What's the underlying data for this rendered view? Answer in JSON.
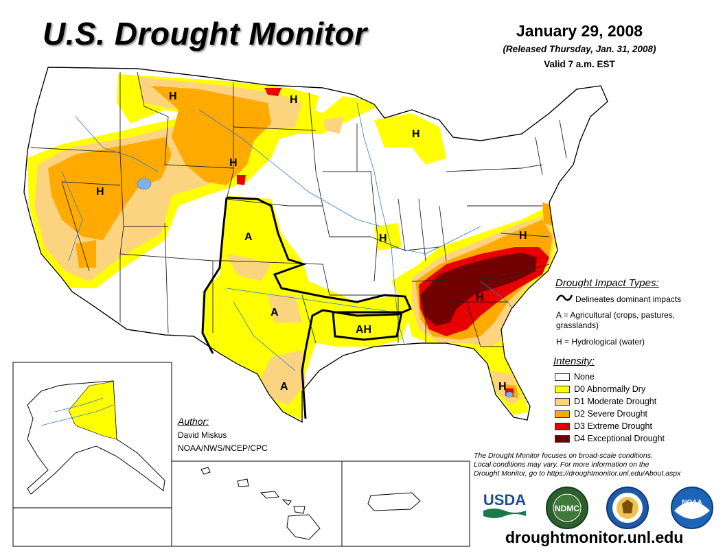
{
  "header": {
    "title": "U.S. Drought Monitor",
    "date": "January 29, 2008",
    "released": "(Released Thursday, Jan. 31, 2008)",
    "valid": "Valid 7 a.m. EST"
  },
  "impact_types": {
    "heading": "Drought Impact Types:",
    "line_label": "Delineates dominant impacts",
    "a_label_1": "A = Agricultural (crops, pastures,",
    "a_label_2": "grasslands)",
    "h_label": "H = Hydrological (water)"
  },
  "intensity": {
    "heading": "Intensity:",
    "levels": [
      {
        "label": "None",
        "color": "#ffffff"
      },
      {
        "label": "D0 Abnormally Dry",
        "color": "#ffff00"
      },
      {
        "label": "D1 Moderate Drought",
        "color": "#fcd37f"
      },
      {
        "label": "D2 Severe Drought",
        "color": "#ffaa00"
      },
      {
        "label": "D3 Extreme Drought",
        "color": "#e60000"
      },
      {
        "label": "D4 Exceptional Drought",
        "color": "#730000"
      }
    ]
  },
  "author": {
    "heading": "Author:",
    "name": "David Miskus",
    "org": "NOAA/NWS/NCEP/CPC"
  },
  "note": {
    "line1": "The Drought Monitor focuses on broad-scale conditions.",
    "line2": "Local conditions may vary. For more information on the",
    "line3": "Drought Monitor, go to https://droughtmonitor.unl.edu/About.aspx"
  },
  "logos": {
    "usda": "USDA",
    "ndmc": "NDMC",
    "noaa": "NOAA"
  },
  "map_labels": {
    "h": "H",
    "a": "A",
    "ah": "AH"
  },
  "website": "droughtmonitor.unl.edu"
}
